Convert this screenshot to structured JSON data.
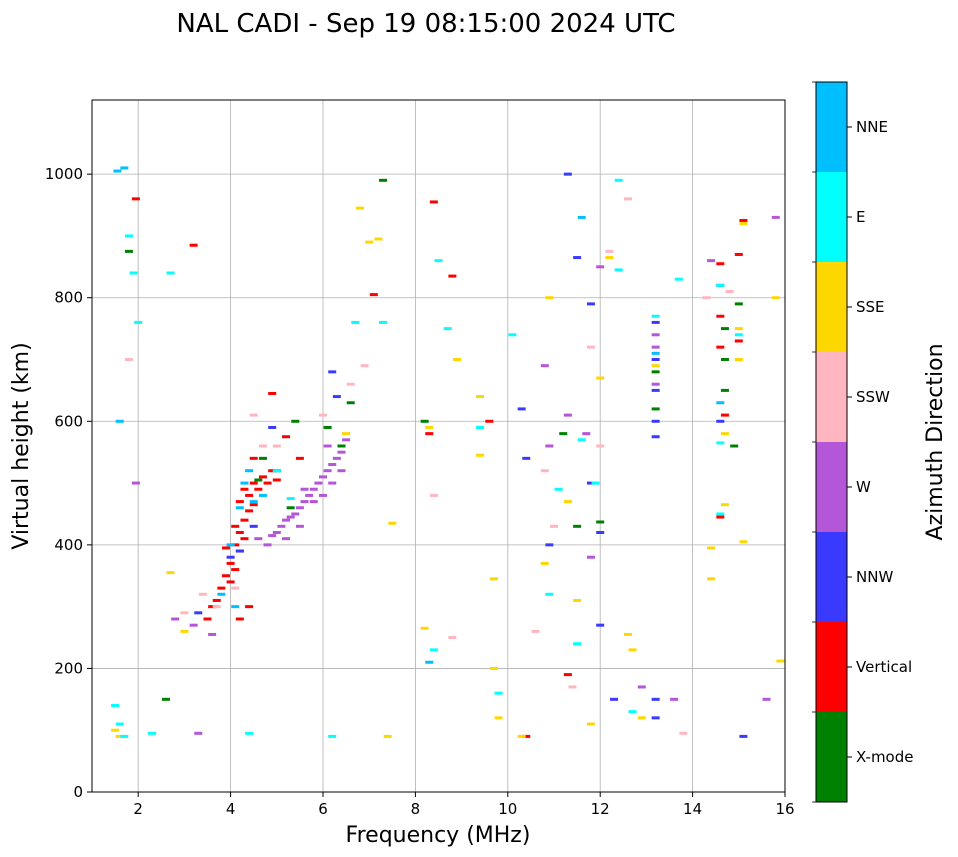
{
  "chart_data": {
    "type": "scatter",
    "title": "NAL CADI - Sep 19 08:15:00 2024 UTC",
    "xlabel": "Frequency (MHz)",
    "ylabel": "Virtual height (km)",
    "xlim": [
      1,
      16
    ],
    "ylim": [
      0,
      1120
    ],
    "xticks": [
      2,
      4,
      6,
      8,
      10,
      12,
      14,
      16
    ],
    "yticks": [
      0,
      200,
      400,
      600,
      800,
      1000
    ],
    "grid": true,
    "colorbar": {
      "label": "Azimuth Direction",
      "categories": [
        {
          "name": "X-mode",
          "color": "#008000"
        },
        {
          "name": "Vertical",
          "color": "#ff0000"
        },
        {
          "name": "NNW",
          "color": "#3a3aff"
        },
        {
          "name": "W",
          "color": "#b456d8"
        },
        {
          "name": "SSW",
          "color": "#ffb6c1"
        },
        {
          "name": "SSE",
          "color": "#ffd700"
        },
        {
          "name": "E",
          "color": "#00ffff"
        },
        {
          "name": "NNE",
          "color": "#00bfff"
        }
      ]
    },
    "series": [
      {
        "name": "X-mode",
        "points": [
          [
            1.8,
            875
          ],
          [
            2.6,
            150
          ],
          [
            4.6,
            505
          ],
          [
            4.7,
            540
          ],
          [
            5.0,
            520
          ],
          [
            5.3,
            460
          ],
          [
            5.4,
            600
          ],
          [
            6.1,
            590
          ],
          [
            6.4,
            560
          ],
          [
            6.6,
            630
          ],
          [
            7.3,
            990
          ],
          [
            8.2,
            600
          ],
          [
            11.2,
            580
          ],
          [
            11.5,
            430
          ],
          [
            12.0,
            437
          ],
          [
            13.2,
            620
          ],
          [
            13.2,
            680
          ],
          [
            14.7,
            650
          ],
          [
            14.7,
            700
          ],
          [
            14.7,
            750
          ],
          [
            15.0,
            790
          ],
          [
            14.9,
            560
          ]
        ]
      },
      {
        "name": "Vertical",
        "points": [
          [
            1.95,
            960
          ],
          [
            3.2,
            885
          ],
          [
            3.5,
            280
          ],
          [
            3.6,
            300
          ],
          [
            3.7,
            310
          ],
          [
            3.8,
            330
          ],
          [
            3.9,
            350
          ],
          [
            4.0,
            340
          ],
          [
            4.0,
            370
          ],
          [
            4.1,
            360
          ],
          [
            4.1,
            400
          ],
          [
            4.2,
            390
          ],
          [
            4.2,
            420
          ],
          [
            4.3,
            410
          ],
          [
            4.3,
            440
          ],
          [
            4.2,
            470
          ],
          [
            4.4,
            455
          ],
          [
            4.4,
            480
          ],
          [
            4.5,
            465
          ],
          [
            4.5,
            500
          ],
          [
            4.6,
            490
          ],
          [
            4.7,
            510
          ],
          [
            4.8,
            500
          ],
          [
            4.9,
            520
          ],
          [
            5.0,
            505
          ],
          [
            4.9,
            645
          ],
          [
            4.3,
            490
          ],
          [
            4.1,
            430
          ],
          [
            3.9,
            395
          ],
          [
            4.2,
            280
          ],
          [
            4.4,
            300
          ],
          [
            4.5,
            540
          ],
          [
            5.2,
            575
          ],
          [
            5.5,
            540
          ],
          [
            8.4,
            955
          ],
          [
            8.8,
            835
          ],
          [
            7.1,
            805
          ],
          [
            8.3,
            580
          ],
          [
            9.6,
            600
          ],
          [
            10.4,
            90
          ],
          [
            11.3,
            190
          ],
          [
            14.6,
            720
          ],
          [
            14.6,
            770
          ],
          [
            14.6,
            855
          ],
          [
            14.6,
            445
          ],
          [
            15.0,
            870
          ],
          [
            15.1,
            925
          ],
          [
            15.0,
            730
          ],
          [
            14.7,
            610
          ]
        ]
      },
      {
        "name": "NNW",
        "points": [
          [
            3.3,
            290
          ],
          [
            4.0,
            380
          ],
          [
            4.2,
            390
          ],
          [
            4.5,
            430
          ],
          [
            4.9,
            590
          ],
          [
            6.2,
            680
          ],
          [
            6.3,
            640
          ],
          [
            10.3,
            620
          ],
          [
            10.4,
            540
          ],
          [
            10.9,
            400
          ],
          [
            11.3,
            1000
          ],
          [
            11.5,
            865
          ],
          [
            11.8,
            790
          ],
          [
            11.8,
            500
          ],
          [
            12.0,
            270
          ],
          [
            12.0,
            420
          ],
          [
            12.3,
            150
          ],
          [
            13.2,
            760
          ],
          [
            13.2,
            700
          ],
          [
            13.2,
            650
          ],
          [
            13.2,
            600
          ],
          [
            13.2,
            575
          ],
          [
            13.2,
            150
          ],
          [
            13.2,
            120
          ],
          [
            15.1,
            90
          ],
          [
            14.6,
            600
          ],
          [
            14.6,
            820
          ]
        ]
      },
      {
        "name": "W",
        "points": [
          [
            3.2,
            270
          ],
          [
            3.6,
            255
          ],
          [
            4.6,
            410
          ],
          [
            4.8,
            400
          ],
          [
            4.9,
            415
          ],
          [
            5.0,
            420
          ],
          [
            5.1,
            430
          ],
          [
            5.2,
            440
          ],
          [
            5.3,
            445
          ],
          [
            5.4,
            450
          ],
          [
            5.5,
            460
          ],
          [
            5.6,
            470
          ],
          [
            5.7,
            480
          ],
          [
            5.8,
            490
          ],
          [
            5.9,
            500
          ],
          [
            6.0,
            510
          ],
          [
            6.1,
            520
          ],
          [
            6.2,
            530
          ],
          [
            6.3,
            540
          ],
          [
            6.4,
            550
          ],
          [
            5.2,
            410
          ],
          [
            5.5,
            430
          ],
          [
            5.8,
            470
          ],
          [
            6.0,
            480
          ],
          [
            6.2,
            500
          ],
          [
            5.6,
            490
          ],
          [
            6.4,
            520
          ],
          [
            6.1,
            560
          ],
          [
            6.5,
            570
          ],
          [
            3.3,
            95
          ],
          [
            2.8,
            280
          ],
          [
            1.95,
            500
          ],
          [
            10.8,
            690
          ],
          [
            10.9,
            560
          ],
          [
            11.3,
            610
          ],
          [
            11.7,
            580
          ],
          [
            11.8,
            380
          ],
          [
            12.0,
            850
          ],
          [
            12.9,
            170
          ],
          [
            13.6,
            150
          ],
          [
            15.6,
            150
          ],
          [
            15.8,
            930
          ],
          [
            14.4,
            860
          ],
          [
            13.2,
            740
          ],
          [
            13.2,
            720
          ],
          [
            13.2,
            660
          ]
        ]
      },
      {
        "name": "SSW",
        "points": [
          [
            1.8,
            700
          ],
          [
            3.0,
            290
          ],
          [
            3.4,
            320
          ],
          [
            3.7,
            300
          ],
          [
            4.1,
            330
          ],
          [
            4.5,
            610
          ],
          [
            4.7,
            560
          ],
          [
            5.0,
            560
          ],
          [
            6.0,
            610
          ],
          [
            6.6,
            660
          ],
          [
            6.9,
            690
          ],
          [
            8.4,
            480
          ],
          [
            8.8,
            250
          ],
          [
            10.8,
            520
          ],
          [
            11.0,
            430
          ],
          [
            11.4,
            170
          ],
          [
            11.8,
            720
          ],
          [
            12.0,
            560
          ],
          [
            12.2,
            875
          ],
          [
            12.6,
            960
          ],
          [
            13.8,
            95
          ],
          [
            14.3,
            800
          ],
          [
            14.8,
            810
          ],
          [
            10.6,
            260
          ]
        ]
      },
      {
        "name": "SSE",
        "points": [
          [
            1.5,
            100
          ],
          [
            1.6,
            90
          ],
          [
            2.7,
            355
          ],
          [
            3.0,
            260
          ],
          [
            6.5,
            580
          ],
          [
            6.8,
            945
          ],
          [
            7.0,
            890
          ],
          [
            7.2,
            895
          ],
          [
            7.5,
            435
          ],
          [
            7.4,
            90
          ],
          [
            8.2,
            265
          ],
          [
            8.3,
            590
          ],
          [
            8.9,
            700
          ],
          [
            9.4,
            640
          ],
          [
            9.4,
            545
          ],
          [
            9.7,
            345
          ],
          [
            9.7,
            200
          ],
          [
            9.8,
            120
          ],
          [
            10.3,
            90
          ],
          [
            10.8,
            370
          ],
          [
            10.9,
            800
          ],
          [
            11.3,
            470
          ],
          [
            11.5,
            310
          ],
          [
            11.8,
            110
          ],
          [
            12.0,
            670
          ],
          [
            12.2,
            865
          ],
          [
            12.6,
            255
          ],
          [
            12.7,
            230
          ],
          [
            12.9,
            120
          ],
          [
            14.4,
            395
          ],
          [
            14.4,
            345
          ],
          [
            14.7,
            465
          ],
          [
            15.0,
            700
          ],
          [
            15.0,
            750
          ],
          [
            15.1,
            920
          ],
          [
            15.1,
            405
          ],
          [
            15.8,
            800
          ],
          [
            15.9,
            212
          ],
          [
            14.7,
            580
          ],
          [
            13.2,
            690
          ]
        ]
      },
      {
        "name": "E",
        "points": [
          [
            1.5,
            140
          ],
          [
            1.6,
            110
          ],
          [
            1.7,
            90
          ],
          [
            1.9,
            840
          ],
          [
            1.8,
            900
          ],
          [
            2.0,
            760
          ],
          [
            2.3,
            95
          ],
          [
            2.7,
            840
          ],
          [
            4.4,
            95
          ],
          [
            5.0,
            520
          ],
          [
            5.3,
            475
          ],
          [
            6.2,
            90
          ],
          [
            6.7,
            760
          ],
          [
            7.3,
            760
          ],
          [
            8.5,
            860
          ],
          [
            8.7,
            750
          ],
          [
            8.4,
            230
          ],
          [
            9.4,
            590
          ],
          [
            9.8,
            160
          ],
          [
            10.1,
            740
          ],
          [
            10.9,
            320
          ],
          [
            11.1,
            490
          ],
          [
            11.5,
            240
          ],
          [
            11.6,
            570
          ],
          [
            11.9,
            500
          ],
          [
            12.4,
            990
          ],
          [
            12.4,
            845
          ],
          [
            12.7,
            130
          ],
          [
            13.7,
            830
          ],
          [
            14.6,
            820
          ],
          [
            14.6,
            450
          ],
          [
            15.0,
            740
          ],
          [
            14.6,
            565
          ],
          [
            13.2,
            770
          ]
        ]
      },
      {
        "name": "NNE",
        "points": [
          [
            1.55,
            1005
          ],
          [
            1.7,
            1010
          ],
          [
            1.6,
            600
          ],
          [
            3.8,
            320
          ],
          [
            4.0,
            400
          ],
          [
            4.2,
            460
          ],
          [
            4.3,
            500
          ],
          [
            4.4,
            520
          ],
          [
            4.5,
            470
          ],
          [
            4.7,
            480
          ],
          [
            4.1,
            300
          ],
          [
            8.3,
            210
          ],
          [
            11.6,
            930
          ],
          [
            13.2,
            710
          ],
          [
            14.6,
            630
          ]
        ]
      }
    ]
  }
}
